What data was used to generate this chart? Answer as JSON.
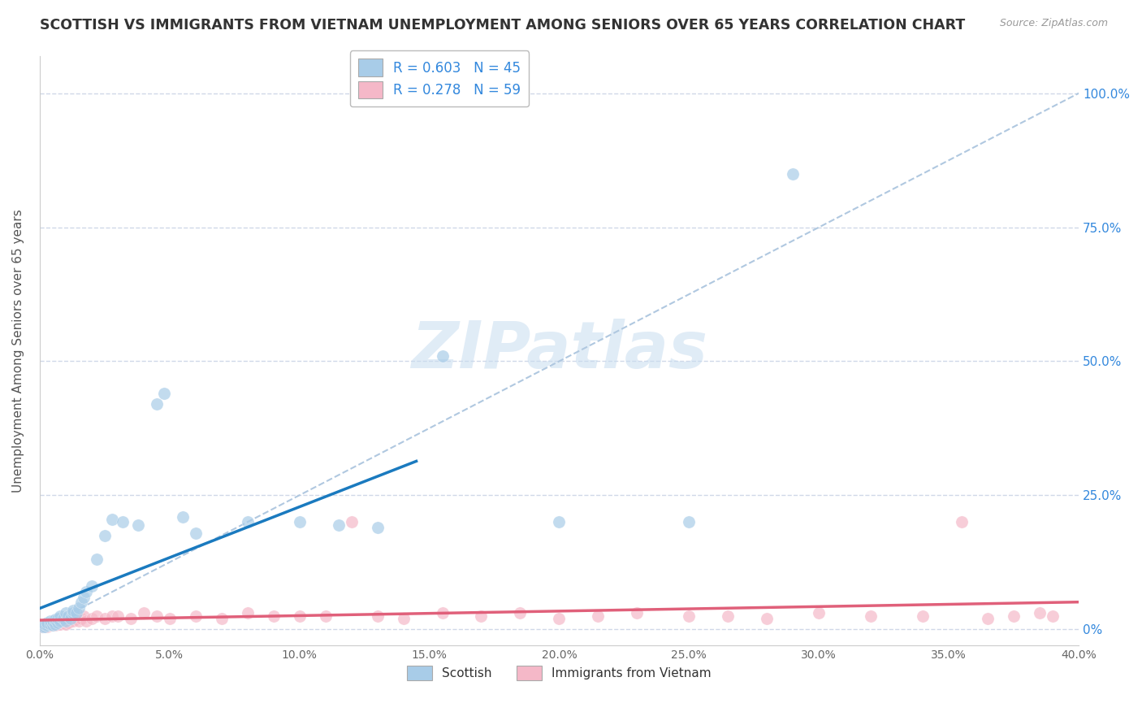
{
  "title": "SCOTTISH VS IMMIGRANTS FROM VIETNAM UNEMPLOYMENT AMONG SENIORS OVER 65 YEARS CORRELATION CHART",
  "source": "Source: ZipAtlas.com",
  "ylabel": "Unemployment Among Seniors over 65 years",
  "xlim": [
    0.0,
    0.4
  ],
  "ylim": [
    -0.03,
    1.07
  ],
  "xticks": [
    0.0,
    0.05,
    0.1,
    0.15,
    0.2,
    0.25,
    0.3,
    0.35,
    0.4
  ],
  "yticks": [
    0.0,
    0.25,
    0.5,
    0.75,
    1.0
  ],
  "ytick_labels": [
    "0%",
    "25.0%",
    "50.0%",
    "75.0%",
    "100.0%"
  ],
  "xtick_labels": [
    "0.0%",
    "5.0%",
    "10.0%",
    "15.0%",
    "20.0%",
    "25.0%",
    "30.0%",
    "35.0%",
    "40.0%"
  ],
  "scottish_R": 0.603,
  "scottish_N": 45,
  "vietnam_R": 0.278,
  "vietnam_N": 59,
  "scottish_color": "#a8cce8",
  "vietnam_color": "#f5b8c8",
  "scottish_line_color": "#1a7abf",
  "vietnam_line_color": "#e0607a",
  "ref_line_color": "#b0c8e0",
  "legend_label_scottish": "Scottish",
  "legend_label_vietnam": "Immigrants from Vietnam",
  "watermark": "ZIPatlas",
  "background_color": "#ffffff",
  "grid_color": "#d0d8e8",
  "title_fontsize": 12.5,
  "axis_label_fontsize": 11,
  "tick_fontsize": 10,
  "legend_fontsize": 12,
  "scottish_x": [
    0.001,
    0.002,
    0.002,
    0.003,
    0.003,
    0.004,
    0.004,
    0.005,
    0.005,
    0.006,
    0.006,
    0.007,
    0.007,
    0.008,
    0.008,
    0.009,
    0.01,
    0.01,
    0.011,
    0.012,
    0.013,
    0.013,
    0.014,
    0.015,
    0.016,
    0.017,
    0.018,
    0.02,
    0.022,
    0.025,
    0.028,
    0.032,
    0.038,
    0.045,
    0.048,
    0.055,
    0.06,
    0.08,
    0.1,
    0.115,
    0.13,
    0.155,
    0.2,
    0.25,
    0.29
  ],
  "scottish_y": [
    0.005,
    0.005,
    0.01,
    0.008,
    0.012,
    0.01,
    0.015,
    0.008,
    0.015,
    0.01,
    0.018,
    0.012,
    0.02,
    0.015,
    0.025,
    0.02,
    0.015,
    0.03,
    0.025,
    0.02,
    0.03,
    0.035,
    0.03,
    0.04,
    0.05,
    0.06,
    0.07,
    0.08,
    0.13,
    0.175,
    0.205,
    0.2,
    0.195,
    0.42,
    0.44,
    0.21,
    0.18,
    0.2,
    0.2,
    0.195,
    0.19,
    0.51,
    0.2,
    0.2,
    0.85
  ],
  "vietnam_x": [
    0.001,
    0.002,
    0.003,
    0.003,
    0.004,
    0.005,
    0.005,
    0.006,
    0.006,
    0.007,
    0.007,
    0.008,
    0.008,
    0.009,
    0.01,
    0.01,
    0.011,
    0.012,
    0.013,
    0.014,
    0.015,
    0.016,
    0.017,
    0.018,
    0.02,
    0.022,
    0.025,
    0.028,
    0.03,
    0.035,
    0.04,
    0.045,
    0.05,
    0.06,
    0.07,
    0.08,
    0.09,
    0.1,
    0.11,
    0.12,
    0.13,
    0.14,
    0.155,
    0.17,
    0.185,
    0.2,
    0.215,
    0.23,
    0.25,
    0.265,
    0.28,
    0.3,
    0.32,
    0.34,
    0.355,
    0.365,
    0.375,
    0.385,
    0.39
  ],
  "vietnam_y": [
    0.005,
    0.008,
    0.005,
    0.01,
    0.008,
    0.01,
    0.015,
    0.008,
    0.012,
    0.01,
    0.015,
    0.01,
    0.018,
    0.012,
    0.01,
    0.015,
    0.012,
    0.018,
    0.015,
    0.02,
    0.015,
    0.02,
    0.025,
    0.015,
    0.02,
    0.025,
    0.02,
    0.025,
    0.025,
    0.02,
    0.03,
    0.025,
    0.02,
    0.025,
    0.02,
    0.03,
    0.025,
    0.025,
    0.025,
    0.2,
    0.025,
    0.02,
    0.03,
    0.025,
    0.03,
    0.02,
    0.025,
    0.03,
    0.025,
    0.025,
    0.02,
    0.03,
    0.025,
    0.025,
    0.2,
    0.02,
    0.025,
    0.03,
    0.025
  ]
}
